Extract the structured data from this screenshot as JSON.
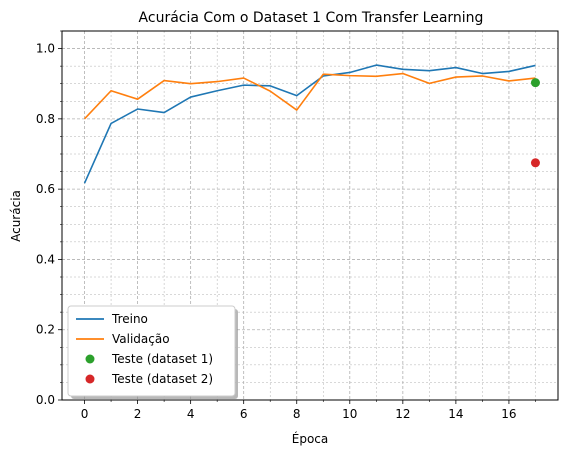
{
  "chart_data": {
    "type": "line",
    "title": "Acurácia Com o Dataset 1 Com Transfer Learning",
    "xlabel": "Época",
    "ylabel": "Acurácia",
    "xlim": [
      -0.85,
      17.85
    ],
    "ylim": [
      0.0,
      1.05
    ],
    "xticks": [
      "0",
      "2",
      "4",
      "6",
      "8",
      "10",
      "12",
      "14",
      "16"
    ],
    "xtick_values": [
      0,
      2,
      4,
      6,
      8,
      10,
      12,
      14,
      16
    ],
    "yticks": [
      "0.0",
      "0.2",
      "0.4",
      "0.6",
      "0.8",
      "1.0"
    ],
    "ytick_values": [
      0.0,
      0.2,
      0.4,
      0.6,
      0.8,
      1.0
    ],
    "grid": true,
    "minor_grid": true,
    "legend_position": "lower-left",
    "x": [
      0,
      1,
      2,
      3,
      4,
      5,
      6,
      7,
      8,
      9,
      10,
      11,
      12,
      13,
      14,
      15,
      16,
      17
    ],
    "series": [
      {
        "name": "Treino",
        "style": "line",
        "color": "#1f77b4",
        "values": [
          0.617,
          0.787,
          0.828,
          0.818,
          0.862,
          0.88,
          0.896,
          0.894,
          0.866,
          0.922,
          0.932,
          0.953,
          0.941,
          0.937,
          0.946,
          0.929,
          0.935,
          0.952
        ]
      },
      {
        "name": "Validação",
        "style": "line",
        "color": "#ff7f0e",
        "values": [
          0.8,
          0.88,
          0.856,
          0.909,
          0.9,
          0.906,
          0.916,
          0.879,
          0.825,
          0.927,
          0.923,
          0.921,
          0.929,
          0.901,
          0.919,
          0.922,
          0.908,
          0.916
        ]
      },
      {
        "name": "Teste (dataset 1)",
        "style": "point",
        "color": "#2ca02c",
        "points": [
          [
            17,
            0.903
          ]
        ]
      },
      {
        "name": "Teste (dataset 2)",
        "style": "point",
        "color": "#d62728",
        "points": [
          [
            17,
            0.675
          ]
        ]
      }
    ]
  }
}
